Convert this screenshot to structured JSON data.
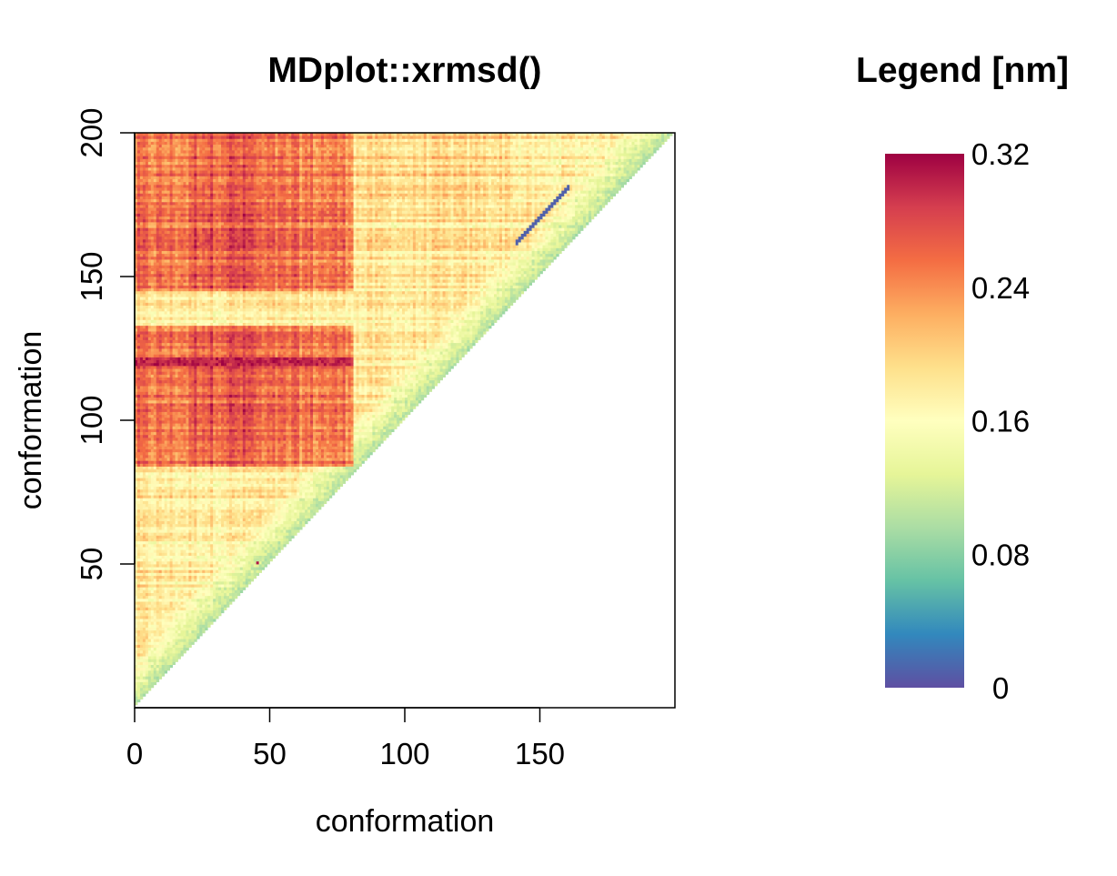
{
  "chart_data": {
    "type": "heatmap",
    "title": "MDplot::xrmsd()",
    "xlabel": "conformation",
    "ylabel": "conformation",
    "xlim": [
      0,
      200
    ],
    "ylim": [
      0,
      200
    ],
    "x_ticks": [
      0,
      50,
      100,
      150
    ],
    "x_tick_labels": [
      "0",
      "50",
      "100",
      "150"
    ],
    "y_ticks": [
      50,
      100,
      150,
      200
    ],
    "y_tick_labels": [
      "50",
      "100",
      "150",
      "200"
    ],
    "triangle": "upper-left (y > x only)",
    "matrix_size": 200,
    "features": {
      "near_diagonal_value": 0.1,
      "band_x_range": [
        0,
        80
      ],
      "band_y_ranges": [
        [
          84,
          132
        ],
        [
          145,
          200
        ]
      ],
      "band_value": 0.25,
      "hot_row_y": 120,
      "hot_row_value": 0.3,
      "background_value": 0.18,
      "low_stripe": {
        "from": [
          141,
          161
        ],
        "to": [
          160,
          180
        ],
        "value": 0.01
      },
      "outlier_point": {
        "x": 45,
        "y": 50,
        "value": 0.31
      }
    },
    "legend": {
      "title": "Legend [nm]",
      "min": 0,
      "max": 0.32,
      "tick_values": [
        0,
        0.08,
        0.16,
        0.24,
        0.32
      ],
      "tick_labels": [
        "0",
        "0.08",
        "0.16",
        "0.24",
        "0.32"
      ],
      "colormap": "Spectral (reversed)",
      "colors": [
        "#5E4FA2",
        "#3288BD",
        "#66C2A5",
        "#ABDDA4",
        "#E6F598",
        "#FFFFBF",
        "#FEE08B",
        "#FDAE61",
        "#F46D43",
        "#D53E4F",
        "#9E0142"
      ]
    }
  }
}
